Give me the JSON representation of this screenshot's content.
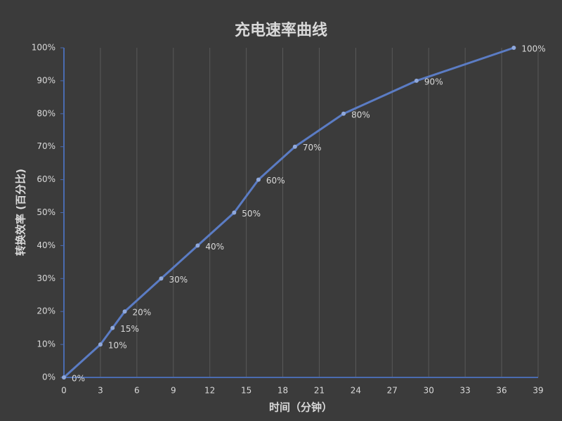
{
  "chart_data": {
    "type": "line",
    "title": "充电速率曲线",
    "x_label": "时间（分钟）",
    "y_label": "转换效率 (百分比)",
    "x": [
      0,
      3,
      4,
      5,
      8,
      11,
      14,
      16,
      19,
      23,
      29,
      37
    ],
    "series": [
      {
        "name": "转换效率",
        "color": "#5b7cc4",
        "values": [
          0,
          10,
          15,
          20,
          30,
          40,
          50,
          60,
          70,
          80,
          90,
          100
        ],
        "value_labels": [
          "0%",
          "10%",
          "15%",
          "20%",
          "30%",
          "40%",
          "50%",
          "60%",
          "70%",
          "80%",
          "90%",
          "100%"
        ]
      }
    ],
    "xlim": [
      0,
      39
    ],
    "xticks": [
      0,
      3,
      6,
      9,
      12,
      15,
      18,
      21,
      24,
      27,
      30,
      33,
      36,
      39
    ],
    "ylim": [
      0,
      100
    ],
    "yticks": [
      {
        "value": 0,
        "label": "0%"
      },
      {
        "value": 10,
        "label": "10%"
      },
      {
        "value": 20,
        "label": "20%"
      },
      {
        "value": 30,
        "label": "30%"
      },
      {
        "value": 40,
        "label": "40%"
      },
      {
        "value": 50,
        "label": "50%"
      },
      {
        "value": 60,
        "label": "60%"
      },
      {
        "value": 70,
        "label": "70%"
      },
      {
        "value": 80,
        "label": "80%"
      },
      {
        "value": 90,
        "label": "90%"
      },
      {
        "value": 100,
        "label": "100%"
      }
    ],
    "grid": true
  }
}
